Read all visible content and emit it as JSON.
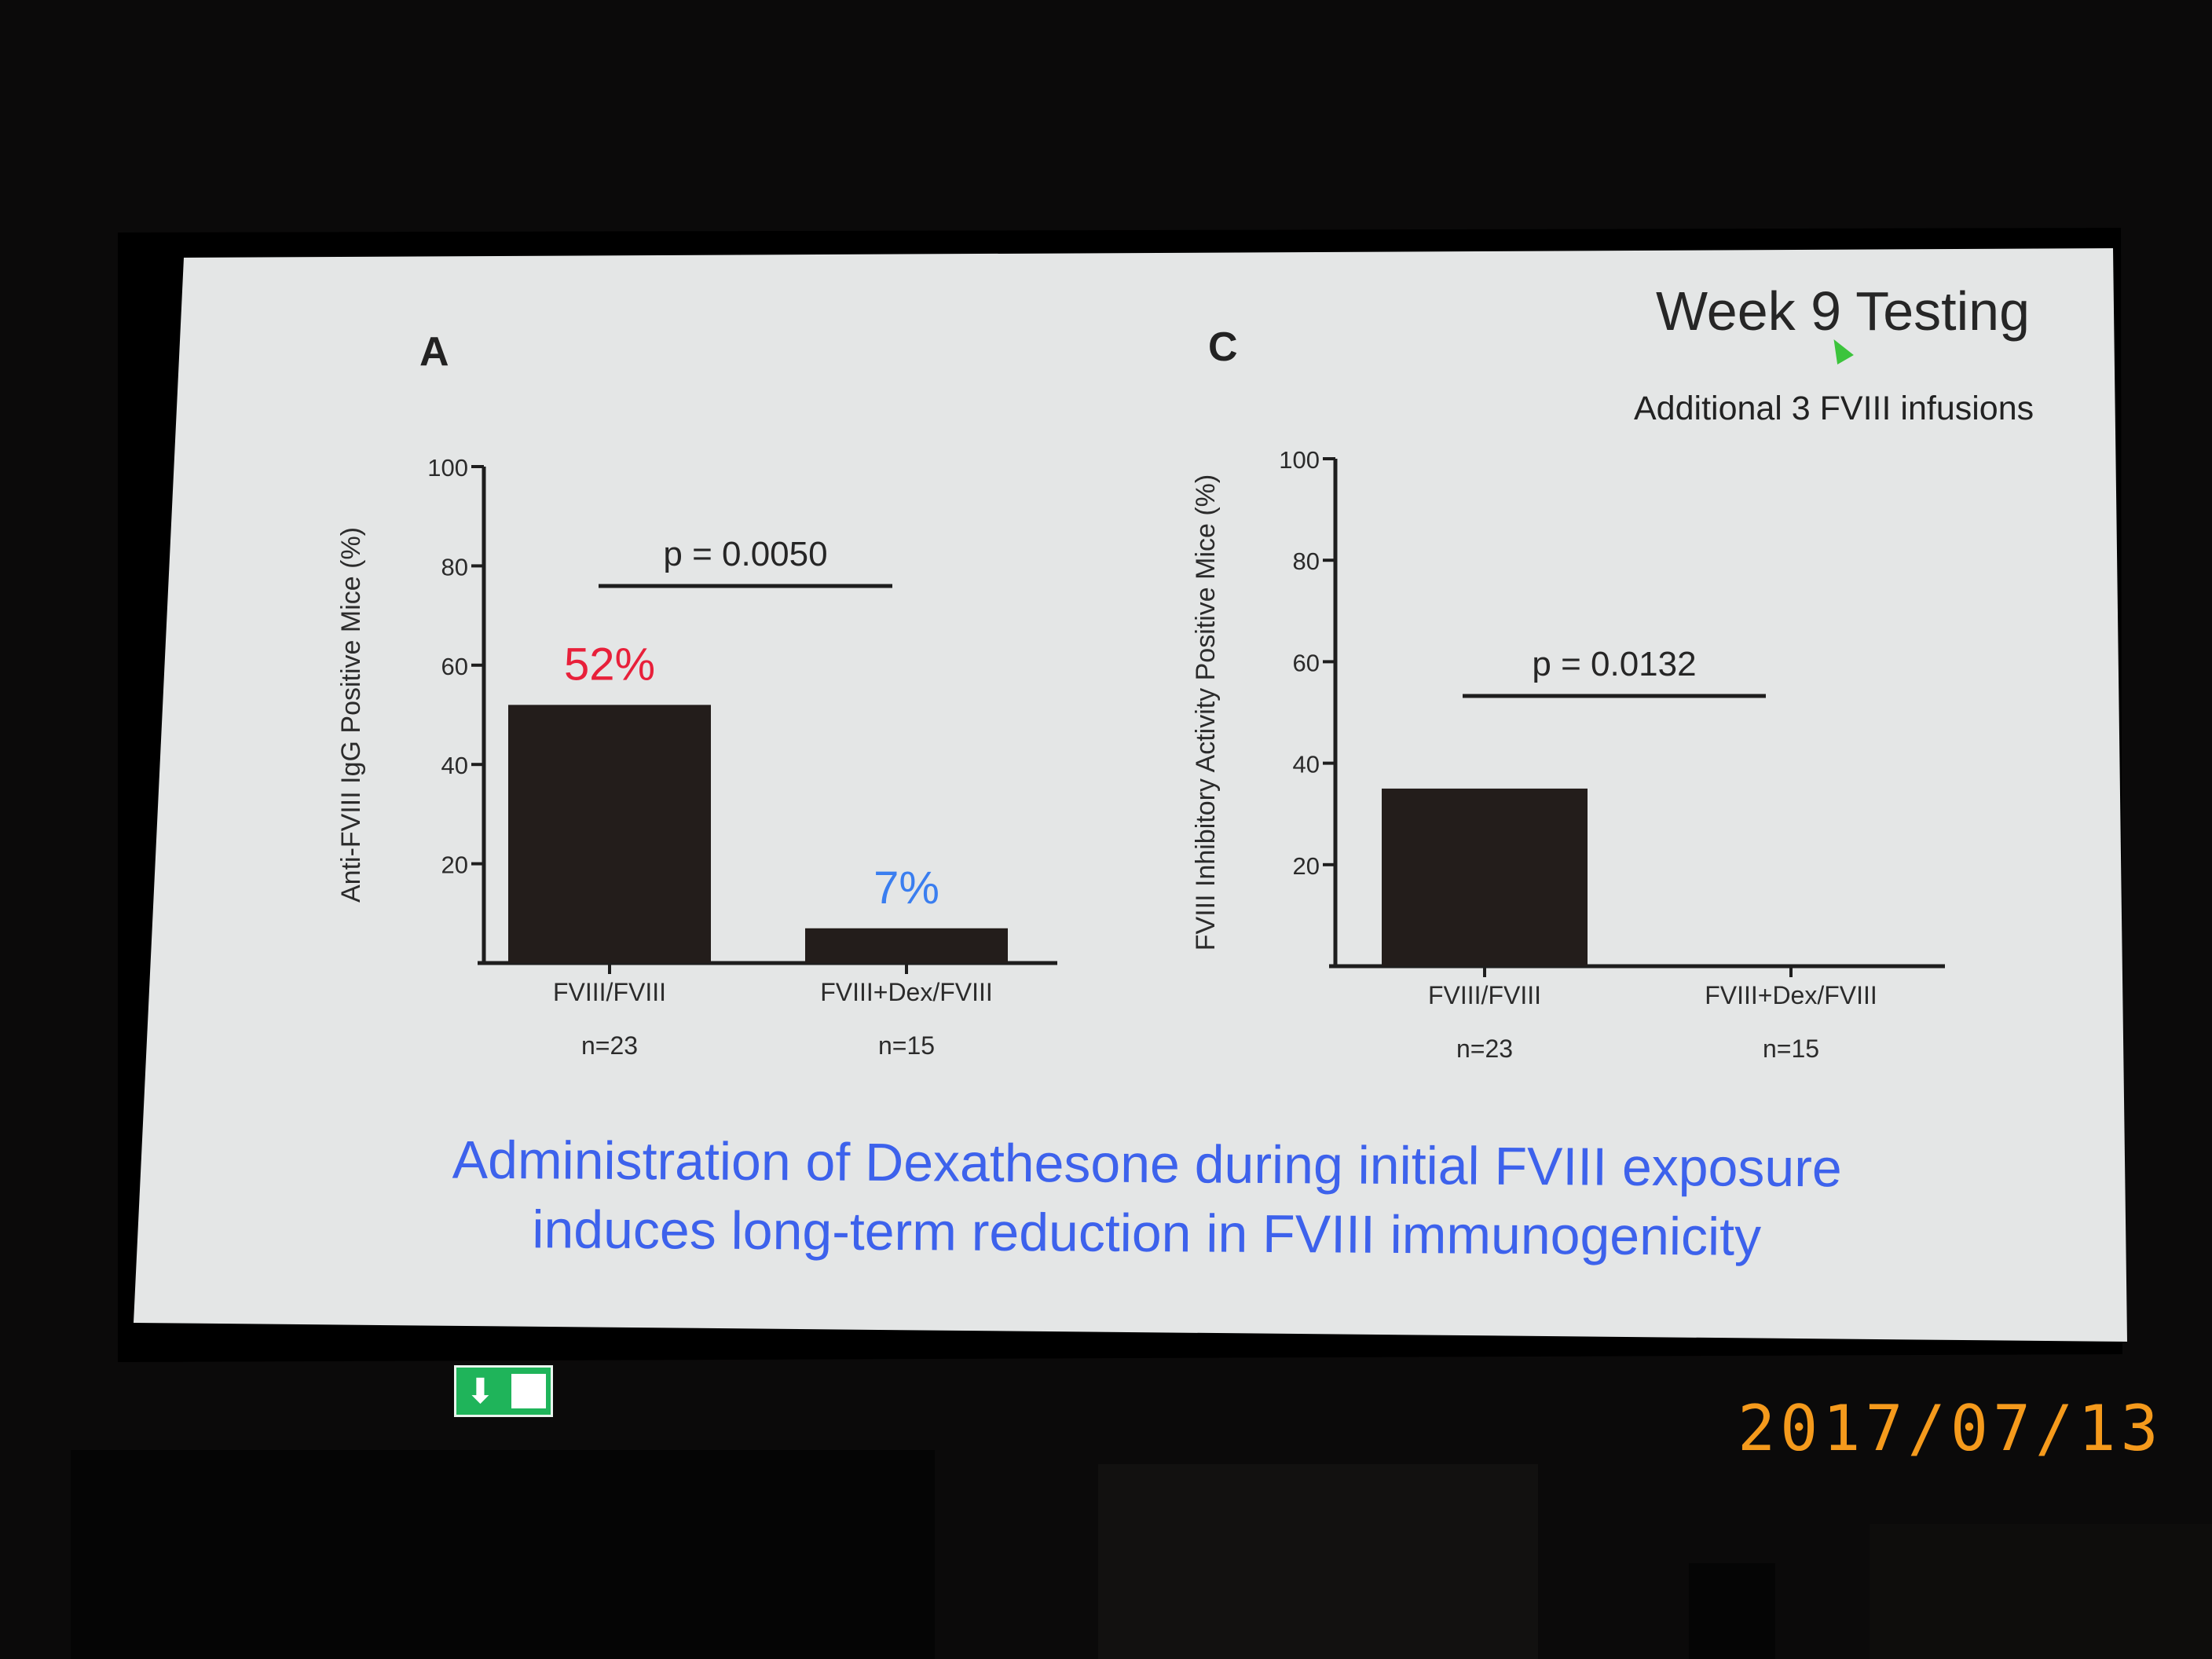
{
  "slide": {
    "title": "Week 9 Testing",
    "subtitle": "Additional 3 FVIII infusions",
    "conclusion": [
      "Administration of Dexathesone during initial FVIII exposure",
      "induces long-term reduction in FVIII immunogenicity"
    ],
    "photo_date": "2017/07/13"
  },
  "chart_data": [
    {
      "type": "bar",
      "panel": "A",
      "categories": [
        "FVIII/FVIII",
        "FVIII+Dex/FVIII"
      ],
      "sample_sizes": [
        "n=23",
        "n=15"
      ],
      "values": [
        52,
        7
      ],
      "data_labels": [
        "52%",
        "7%"
      ],
      "data_label_colors": [
        "#e8203a",
        "#3a7ef0"
      ],
      "ylabel": "Anti-FVIII IgG Positive Mice (%)",
      "ylim": [
        0,
        100
      ],
      "yticks": [
        20,
        40,
        60,
        80,
        100
      ],
      "grid": false,
      "bar_color": "#231d1b",
      "significance": {
        "label": "p = 0.0050"
      }
    },
    {
      "type": "bar",
      "panel": "C",
      "categories": [
        "FVIII/FVIII",
        "FVIII+Dex/FVIII"
      ],
      "sample_sizes": [
        "n=23",
        "n=15"
      ],
      "values": [
        35,
        0
      ],
      "ylabel": "FVIII Inhibitory Activity  Positive Mice (%)",
      "ylim": [
        0,
        100
      ],
      "yticks": [
        20,
        40,
        60,
        80,
        100
      ],
      "grid": false,
      "bar_color": "#231d1b",
      "significance": {
        "label": "p = 0.0132"
      }
    }
  ],
  "colors": {
    "screen": "#e4e6e6",
    "conclusion_text": "#3d62ec",
    "axis": "#1e1e1e"
  }
}
